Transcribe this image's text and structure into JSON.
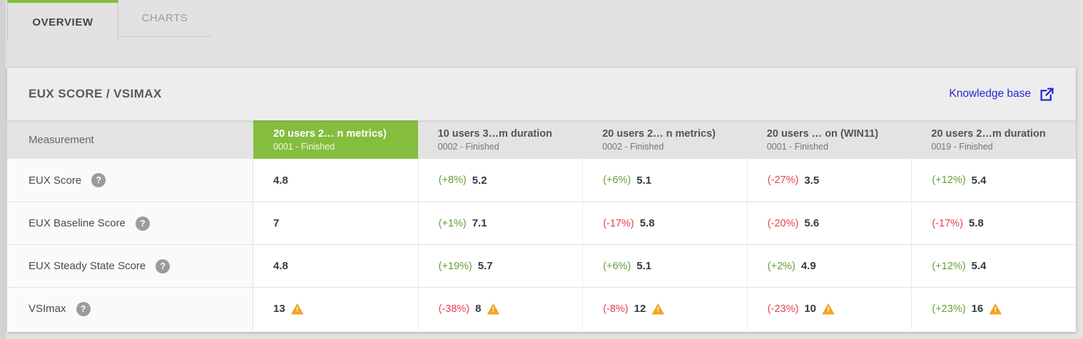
{
  "tabs": [
    {
      "label": "OVERVIEW",
      "active": true
    },
    {
      "label": "CHARTS",
      "active": false
    }
  ],
  "panel": {
    "title": "EUX SCORE / VSIMAX",
    "knowledge_base_label": "Knowledge base",
    "knowledge_base_icon": "external-link-icon"
  },
  "table": {
    "measurement_header": "Measurement",
    "columns": [
      {
        "title": "20 users 2…  n metrics)",
        "subtitle": "0001 - Finished",
        "selected": true
      },
      {
        "title": "10 users 3…m duration",
        "subtitle": "0002 - Finished",
        "selected": false
      },
      {
        "title": "20 users 2…  n metrics)",
        "subtitle": "0002 - Finished",
        "selected": false
      },
      {
        "title": "20 users …  on (WIN11)",
        "subtitle": "0001 - Finished",
        "selected": false
      },
      {
        "title": "20 users 2…m duration",
        "subtitle": "0019 - Finished",
        "selected": false
      }
    ],
    "rows": [
      {
        "measurement": "EUX Score",
        "help_icon": "question-icon",
        "cells": [
          {
            "pct": null,
            "trend": null,
            "value": "4.8",
            "warning": false
          },
          {
            "pct": "(+8%)",
            "trend": "up",
            "value": "5.2",
            "warning": false
          },
          {
            "pct": "(+6%)",
            "trend": "up",
            "value": "5.1",
            "warning": false
          },
          {
            "pct": "(-27%)",
            "trend": "down",
            "value": "3.5",
            "warning": false
          },
          {
            "pct": "(+12%)",
            "trend": "up",
            "value": "5.4",
            "warning": false
          }
        ]
      },
      {
        "measurement": "EUX Baseline Score",
        "help_icon": "question-icon",
        "cells": [
          {
            "pct": null,
            "trend": null,
            "value": "7",
            "warning": false
          },
          {
            "pct": "(+1%)",
            "trend": "up",
            "value": "7.1",
            "warning": false
          },
          {
            "pct": "(-17%)",
            "trend": "down",
            "value": "5.8",
            "warning": false
          },
          {
            "pct": "(-20%)",
            "trend": "down",
            "value": "5.6",
            "warning": false
          },
          {
            "pct": "(-17%)",
            "trend": "down",
            "value": "5.8",
            "warning": false
          }
        ]
      },
      {
        "measurement": "EUX Steady State Score",
        "help_icon": "question-icon",
        "cells": [
          {
            "pct": null,
            "trend": null,
            "value": "4.8",
            "warning": false
          },
          {
            "pct": "(+19%)",
            "trend": "up",
            "value": "5.7",
            "warning": false
          },
          {
            "pct": "(+6%)",
            "trend": "up",
            "value": "5.1",
            "warning": false
          },
          {
            "pct": "(+2%)",
            "trend": "up",
            "value": "4.9",
            "warning": false
          },
          {
            "pct": "(+12%)",
            "trend": "up",
            "value": "5.4",
            "warning": false
          }
        ]
      },
      {
        "measurement": "VSImax",
        "help_icon": "question-icon",
        "cells": [
          {
            "pct": null,
            "trend": null,
            "value": "13",
            "warning": true
          },
          {
            "pct": "(-38%)",
            "trend": "down",
            "value": "8",
            "warning": true
          },
          {
            "pct": "(-8%)",
            "trend": "down",
            "value": "12",
            "warning": true
          },
          {
            "pct": "(-23%)",
            "trend": "down",
            "value": "10",
            "warning": true
          },
          {
            "pct": "(+23%)",
            "trend": "up",
            "value": "16",
            "warning": true
          }
        ]
      }
    ]
  },
  "colors": {
    "accent_green": "#85bd3f",
    "positive_text": "#63a136",
    "negative_text": "#e4414e",
    "warning_orange": "#f3a41f",
    "link_blue": "#2b26d4"
  }
}
